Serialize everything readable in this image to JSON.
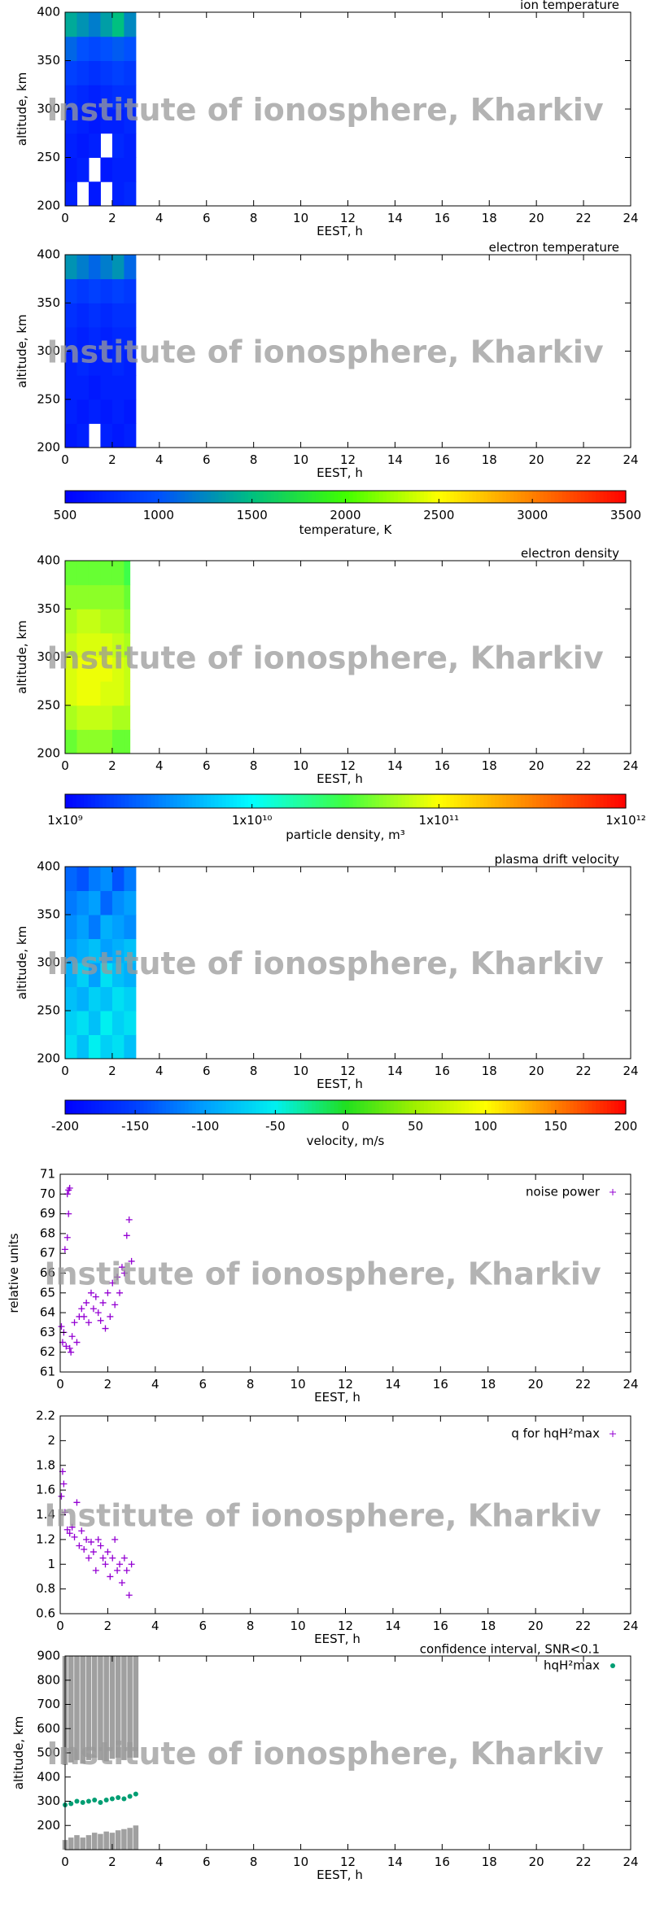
{
  "watermark": "Institute of ionosphere, Kharkiv",
  "chart_data": [
    {
      "type": "heatmap",
      "title": "ion temperature",
      "xlabel": "EEST, h",
      "ylabel": "altitude, km",
      "xlim": [
        0,
        24
      ],
      "ylim": [
        200,
        400
      ],
      "xticks": [
        0,
        2,
        4,
        6,
        8,
        10,
        12,
        14,
        16,
        18,
        20,
        22,
        24
      ],
      "yticks": [
        200,
        250,
        300,
        350,
        400
      ],
      "x": [
        0,
        0.5,
        1,
        1.5,
        2,
        2.5,
        3
      ],
      "y": [
        200,
        225,
        250,
        275,
        300,
        325,
        350,
        375,
        400
      ],
      "z": [
        [
          700,
          null,
          650,
          null,
          700,
          750
        ],
        [
          650,
          700,
          null,
          650,
          700,
          700
        ],
        [
          700,
          650,
          700,
          null,
          750,
          700
        ],
        [
          750,
          700,
          650,
          700,
          700,
          750
        ],
        [
          800,
          750,
          700,
          750,
          800,
          800
        ],
        [
          900,
          850,
          800,
          850,
          900,
          850
        ],
        [
          1100,
          1000,
          950,
          1000,
          1050,
          1000
        ],
        [
          1400,
          1300,
          1200,
          1350,
          1500,
          1250
        ]
      ],
      "zlim": [
        500,
        3500
      ],
      "colormap": [
        "#0000ff",
        "#0050ff",
        "#00c080",
        "#40ff00",
        "#ffff00",
        "#ff8000",
        "#ff0000"
      ]
    },
    {
      "type": "heatmap",
      "title": "electron temperature",
      "xlabel": "EEST, h",
      "ylabel": "altitude, km",
      "xlim": [
        0,
        24
      ],
      "ylim": [
        200,
        400
      ],
      "xticks": [
        0,
        2,
        4,
        6,
        8,
        10,
        12,
        14,
        16,
        18,
        20,
        22,
        24
      ],
      "yticks": [
        200,
        250,
        300,
        350,
        400
      ],
      "x": [
        0,
        0.5,
        1,
        1.5,
        2,
        2.5,
        3
      ],
      "y": [
        200,
        225,
        250,
        275,
        300,
        325,
        350,
        375,
        400
      ],
      "z": [
        [
          650,
          700,
          null,
          700,
          650,
          700
        ],
        [
          700,
          650,
          700,
          650,
          700,
          650
        ],
        [
          700,
          700,
          650,
          700,
          700,
          700
        ],
        [
          700,
          750,
          700,
          700,
          750,
          700
        ],
        [
          750,
          700,
          750,
          700,
          750,
          750
        ],
        [
          800,
          750,
          800,
          750,
          800,
          800
        ],
        [
          900,
          850,
          900,
          850,
          900,
          850
        ],
        [
          1300,
          1200,
          1100,
          1200,
          1300,
          1100
        ]
      ],
      "zlim": [
        500,
        3500
      ],
      "colormap": [
        "#0000ff",
        "#0050ff",
        "#00c080",
        "#40ff00",
        "#ffff00",
        "#ff8000",
        "#ff0000"
      ],
      "colorbar": {
        "label": "temperature, K",
        "ticks": [
          500,
          1000,
          1500,
          2000,
          2500,
          3000,
          3500
        ]
      }
    },
    {
      "type": "heatmap",
      "title": "electron density",
      "xlabel": "EEST, h",
      "ylabel": "altitude, km",
      "xlim": [
        0,
        24
      ],
      "ylim": [
        200,
        400
      ],
      "xticks": [
        0,
        2,
        4,
        6,
        8,
        10,
        12,
        14,
        16,
        18,
        20,
        22,
        24
      ],
      "yticks": [
        200,
        250,
        300,
        350,
        400
      ],
      "x": [
        0,
        0.5,
        1,
        1.5,
        2,
        2.5,
        2.75
      ],
      "y": [
        200,
        225,
        250,
        275,
        300,
        325,
        350,
        375,
        400
      ],
      "z": [
        [
          40000000000.0,
          50000000000.0,
          50000000000.0,
          50000000000.0,
          40000000000.0,
          40000000000.0
        ],
        [
          60000000000.0,
          70000000000.0,
          70000000000.0,
          70000000000.0,
          60000000000.0,
          60000000000.0
        ],
        [
          80000000000.0,
          90000000000.0,
          90000000000.0,
          80000000000.0,
          80000000000.0,
          70000000000.0
        ],
        [
          80000000000.0,
          90000000000.0,
          90000000000.0,
          90000000000.0,
          80000000000.0,
          70000000000.0
        ],
        [
          70000000000.0,
          80000000000.0,
          80000000000.0,
          80000000000.0,
          70000000000.0,
          60000000000.0
        ],
        [
          60000000000.0,
          70000000000.0,
          70000000000.0,
          60000000000.0,
          60000000000.0,
          50000000000.0
        ],
        [
          50000000000.0,
          50000000000.0,
          50000000000.0,
          50000000000.0,
          50000000000.0,
          40000000000.0
        ],
        [
          40000000000.0,
          40000000000.0,
          40000000000.0,
          40000000000.0,
          40000000000.0,
          30000000000.0
        ]
      ],
      "zlim": [
        1000000000.0,
        1000000000000.0
      ],
      "zlog": true,
      "colormap": [
        "#0000ff",
        "#0080ff",
        "#00ffff",
        "#40ff40",
        "#ffff00",
        "#ff8000",
        "#ff0000"
      ],
      "colorbar": {
        "label": "particle density, m³",
        "ticks": [
          {
            "value": 1000000000.0,
            "label": "1x10⁹"
          },
          {
            "value": 10000000000.0,
            "label": "1x10¹⁰"
          },
          {
            "value": 100000000000.0,
            "label": "1x10¹¹"
          },
          {
            "value": 1000000000000.0,
            "label": "1x10¹²"
          }
        ]
      }
    },
    {
      "type": "heatmap",
      "title": "plasma drift velocity",
      "xlabel": "EEST, h",
      "ylabel": "altitude, km",
      "xlim": [
        0,
        24
      ],
      "ylim": [
        200,
        400
      ],
      "xticks": [
        0,
        2,
        4,
        6,
        8,
        10,
        12,
        14,
        16,
        18,
        20,
        22,
        24
      ],
      "yticks": [
        200,
        250,
        300,
        350,
        400
      ],
      "x": [
        0,
        0.5,
        1,
        1.5,
        2,
        2.5,
        3
      ],
      "y": [
        200,
        225,
        250,
        275,
        300,
        325,
        350,
        375,
        400
      ],
      "z": [
        [
          -60,
          -80,
          -50,
          -70,
          -60,
          -80
        ],
        [
          -70,
          -60,
          -80,
          -50,
          -70,
          -60
        ],
        [
          -80,
          -90,
          -70,
          -80,
          -60,
          -70
        ],
        [
          -90,
          -70,
          -100,
          -60,
          -80,
          -90
        ],
        [
          -100,
          -90,
          -80,
          -100,
          -90,
          -80
        ],
        [
          -110,
          -100,
          -120,
          -90,
          -100,
          -110
        ],
        [
          -120,
          -110,
          -100,
          -130,
          -110,
          -100
        ],
        [
          -130,
          -140,
          -120,
          -110,
          -140,
          -120
        ]
      ],
      "zlim": [
        -200,
        200
      ],
      "colormap": [
        "#0000ff",
        "#0040ff",
        "#00a0ff",
        "#00f0f0",
        "#20e020",
        "#a0f000",
        "#ffff00",
        "#ff8000",
        "#ff0000"
      ],
      "colorbar": {
        "label": "velocity, m/s",
        "ticks": [
          -200,
          -150,
          -100,
          -50,
          0,
          50,
          100,
          150,
          200
        ]
      }
    },
    {
      "type": "scatter",
      "xlabel": "EEST, h",
      "ylabel": "relative units",
      "xlim": [
        0,
        24
      ],
      "ylim": [
        61,
        71
      ],
      "xticks": [
        0,
        2,
        4,
        6,
        8,
        10,
        12,
        14,
        16,
        18,
        20,
        22,
        24
      ],
      "yticks": [
        61,
        62,
        63,
        64,
        65,
        66,
        67,
        68,
        69,
        70,
        71
      ],
      "series": [
        {
          "name": "noise power",
          "color": "#9400d3",
          "x": [
            0.05,
            0.1,
            0.15,
            0.2,
            0.25,
            0.3,
            0.35,
            0.4,
            0.45,
            0.5,
            0.6,
            0.7,
            0.8,
            0.9,
            1.0,
            1.1,
            1.2,
            1.3,
            1.4,
            1.5,
            1.6,
            1.7,
            1.8,
            1.9,
            2.0,
            2.1,
            2.2,
            2.3,
            2.4,
            2.5,
            2.6,
            2.7,
            2.8,
            2.9,
            3.0,
            0.3,
            0.35,
            0.4
          ],
          "values": [
            63.3,
            62.5,
            63.0,
            67.2,
            62.3,
            67.8,
            69.0,
            70.3,
            62.0,
            62.8,
            63.5,
            62.5,
            63.8,
            64.2,
            63.8,
            64.5,
            63.5,
            65.0,
            64.2,
            64.8,
            64.0,
            63.6,
            64.5,
            63.2,
            65.0,
            63.8,
            65.5,
            64.4,
            65.8,
            65.0,
            66.3,
            66.0,
            67.9,
            68.7,
            66.6,
            70.0,
            70.2,
            62.2
          ]
        }
      ]
    },
    {
      "type": "scatter",
      "xlabel": "EEST, h",
      "xlim": [
        0,
        24
      ],
      "ylim": [
        0.6,
        2.2
      ],
      "xticks": [
        0,
        2,
        4,
        6,
        8,
        10,
        12,
        14,
        16,
        18,
        20,
        22,
        24
      ],
      "yticks": [
        0.6,
        0.8,
        1,
        1.2,
        1.4,
        1.6,
        1.8,
        2,
        2.2
      ],
      "series": [
        {
          "name": "q for hqH²max",
          "color": "#9400d3",
          "x": [
            0.05,
            0.1,
            0.15,
            0.2,
            0.3,
            0.4,
            0.5,
            0.6,
            0.7,
            0.8,
            0.9,
            1.0,
            1.1,
            1.2,
            1.3,
            1.4,
            1.5,
            1.6,
            1.7,
            1.8,
            1.9,
            2.0,
            2.1,
            2.2,
            2.3,
            2.4,
            2.5,
            2.6,
            2.7,
            2.8,
            2.9,
            3.0
          ],
          "values": [
            1.55,
            1.75,
            1.65,
            1.42,
            1.28,
            1.25,
            1.3,
            1.22,
            1.5,
            1.15,
            1.27,
            1.12,
            1.2,
            1.05,
            1.18,
            1.1,
            0.95,
            1.2,
            1.15,
            1.05,
            1.0,
            1.1,
            0.9,
            1.05,
            1.2,
            0.95,
            1.0,
            0.85,
            1.05,
            0.95,
            0.75,
            1.0
          ]
        }
      ]
    },
    {
      "type": "scatter",
      "xlabel": "EEST, h",
      "ylabel": "altitude, km",
      "xlim": [
        0,
        24
      ],
      "ylim": [
        100,
        900
      ],
      "xticks": [
        0,
        2,
        4,
        6,
        8,
        10,
        12,
        14,
        16,
        18,
        20,
        22,
        24
      ],
      "yticks": [
        200,
        300,
        400,
        500,
        600,
        700,
        800,
        900
      ],
      "series": [
        {
          "name": "confidence interval, SNR<0.1",
          "color": "#808080",
          "type": "range",
          "x": [
            0,
            0.25,
            0.5,
            0.75,
            1,
            1.25,
            1.5,
            1.75,
            2,
            2.25,
            2.5,
            2.75,
            3
          ],
          "low": [
            450,
            460,
            470,
            455,
            470,
            480,
            470,
            465,
            475,
            480,
            470,
            480,
            480
          ],
          "high": [
            900,
            900,
            900,
            900,
            900,
            900,
            900,
            900,
            900,
            900,
            900,
            900,
            900
          ]
        },
        {
          "color": "#808080",
          "type": "range",
          "x": [
            0,
            0.25,
            0.5,
            0.75,
            1,
            1.25,
            1.5,
            1.75,
            2,
            2.25,
            2.5,
            2.75,
            3
          ],
          "low": [
            100,
            100,
            100,
            100,
            100,
            100,
            100,
            100,
            100,
            100,
            100,
            100,
            100
          ],
          "high": [
            140,
            150,
            160,
            150,
            160,
            170,
            165,
            175,
            170,
            180,
            185,
            190,
            200
          ]
        },
        {
          "name": "hqH²max",
          "color": "#009e73",
          "x": [
            0,
            0.25,
            0.5,
            0.75,
            1,
            1.25,
            1.5,
            1.75,
            2,
            2.25,
            2.5,
            2.75,
            3
          ],
          "values": [
            285,
            290,
            300,
            295,
            300,
            305,
            295,
            305,
            310,
            315,
            310,
            320,
            330
          ]
        }
      ]
    }
  ]
}
